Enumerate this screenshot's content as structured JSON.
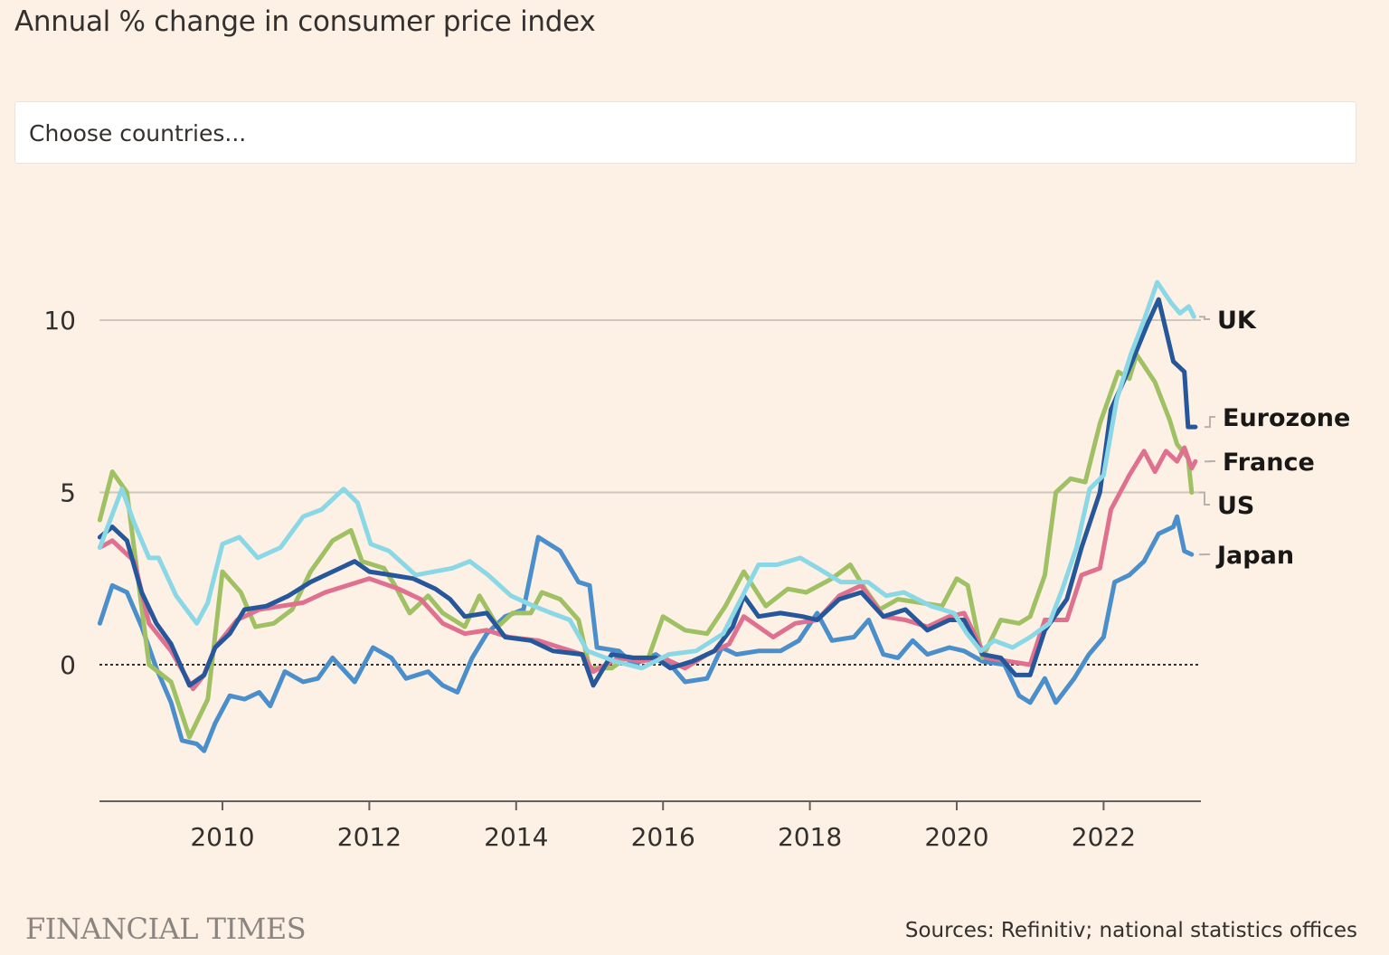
{
  "title": "Annual % change in consumer price index",
  "select": {
    "placeholder": "Choose countries..."
  },
  "footer": {
    "brand": "FINANCIAL TIMES",
    "source": "Sources: Refinitiv; national statistics offices"
  },
  "chart_data": {
    "type": "line",
    "title": "Annual % change in consumer price index",
    "xlabel": "",
    "ylabel": "",
    "xlim": [
      2008.33,
      2023.3
    ],
    "ylim": [
      -4,
      11.5
    ],
    "yticks": [
      0,
      5,
      10
    ],
    "xticks": [
      2010,
      2012,
      2014,
      2016,
      2018,
      2020,
      2022
    ],
    "grid": "horizontal",
    "legend": "direct labels right",
    "series": [
      {
        "name": "UK",
        "color": "#8ad8e6",
        "x": [
          2008.33,
          2008.63,
          2008.8,
          2009.0,
          2009.13,
          2009.37,
          2009.65,
          2009.8,
          2010.0,
          2010.23,
          2010.48,
          2010.79,
          2011.1,
          2011.35,
          2011.65,
          2011.84,
          2012.02,
          2012.27,
          2012.63,
          2013.13,
          2013.37,
          2013.62,
          2013.93,
          2014.24,
          2014.48,
          2014.73,
          2014.97,
          2015.34,
          2015.71,
          2016.08,
          2016.45,
          2016.82,
          2017.13,
          2017.3,
          2017.55,
          2017.87,
          2018.11,
          2018.42,
          2018.79,
          2019.04,
          2019.28,
          2019.65,
          2019.96,
          2020.14,
          2020.33,
          2020.51,
          2020.76,
          2021.0,
          2021.26,
          2021.44,
          2021.63,
          2021.81,
          2022.0,
          2022.18,
          2022.37,
          2022.55,
          2022.73,
          2022.92,
          2023.04,
          2023.16,
          2023.23
        ],
        "y": [
          3.4,
          5.1,
          4.1,
          3.1,
          3.1,
          2.0,
          1.2,
          1.8,
          3.5,
          3.7,
          3.1,
          3.4,
          4.3,
          4.5,
          5.1,
          4.7,
          3.5,
          3.3,
          2.6,
          2.8,
          3.0,
          2.6,
          2.0,
          1.7,
          1.5,
          1.3,
          0.4,
          0.1,
          -0.1,
          0.3,
          0.4,
          0.9,
          2.2,
          2.9,
          2.9,
          3.1,
          2.8,
          2.4,
          2.4,
          2.0,
          2.1,
          1.7,
          1.5,
          0.9,
          0.4,
          0.7,
          0.5,
          0.8,
          1.2,
          2.2,
          3.4,
          5.1,
          5.5,
          7.7,
          9.0,
          10.0,
          11.1,
          10.5,
          10.2,
          10.4,
          10.1
        ]
      },
      {
        "name": "Eurozone",
        "color": "#26579b",
        "x": [
          2008.33,
          2008.5,
          2008.7,
          2008.9,
          2009.1,
          2009.3,
          2009.55,
          2009.75,
          2009.9,
          2010.1,
          2010.3,
          2010.6,
          2010.9,
          2011.2,
          2011.5,
          2011.8,
          2012.0,
          2012.3,
          2012.6,
          2012.9,
          2013.1,
          2013.3,
          2013.6,
          2013.85,
          2014.2,
          2014.5,
          2014.9,
          2015.05,
          2015.3,
          2015.6,
          2015.9,
          2016.1,
          2016.4,
          2016.7,
          2016.95,
          2017.1,
          2017.3,
          2017.6,
          2017.9,
          2018.1,
          2018.4,
          2018.7,
          2019.0,
          2019.3,
          2019.6,
          2019.9,
          2020.1,
          2020.35,
          2020.6,
          2020.8,
          2021.0,
          2021.2,
          2021.5,
          2021.7,
          2021.95,
          2022.1,
          2022.35,
          2022.6,
          2022.75,
          2022.95,
          2023.1,
          2023.15,
          2023.25
        ],
        "y": [
          3.7,
          4.0,
          3.6,
          2.1,
          1.2,
          0.6,
          -0.6,
          -0.3,
          0.5,
          0.9,
          1.6,
          1.7,
          2.0,
          2.4,
          2.7,
          3.0,
          2.7,
          2.6,
          2.5,
          2.2,
          1.9,
          1.4,
          1.5,
          0.8,
          0.7,
          0.4,
          0.3,
          -0.6,
          0.3,
          0.2,
          0.2,
          -0.1,
          0.1,
          0.4,
          1.1,
          2.0,
          1.4,
          1.5,
          1.4,
          1.3,
          1.9,
          2.1,
          1.4,
          1.6,
          1.0,
          1.3,
          1.3,
          0.3,
          0.2,
          -0.3,
          -0.3,
          1.0,
          1.9,
          3.4,
          5.0,
          7.4,
          8.6,
          9.9,
          10.6,
          8.8,
          8.5,
          6.9,
          6.9
        ]
      },
      {
        "name": "France",
        "color": "#e0708f",
        "x": [
          2008.33,
          2008.5,
          2008.8,
          2009.0,
          2009.3,
          2009.6,
          2009.75,
          2009.9,
          2010.2,
          2010.5,
          2010.8,
          2011.1,
          2011.4,
          2011.7,
          2012.0,
          2012.4,
          2012.7,
          2013.0,
          2013.3,
          2013.6,
          2013.9,
          2014.3,
          2014.6,
          2014.9,
          2015.05,
          2015.4,
          2015.7,
          2016.0,
          2016.3,
          2016.6,
          2016.9,
          2017.1,
          2017.5,
          2017.8,
          2018.1,
          2018.4,
          2018.7,
          2019.0,
          2019.3,
          2019.6,
          2019.9,
          2020.1,
          2020.4,
          2020.7,
          2021.0,
          2021.2,
          2021.5,
          2021.7,
          2021.95,
          2022.1,
          2022.35,
          2022.55,
          2022.7,
          2022.85,
          2023.0,
          2023.1,
          2023.2,
          2023.25
        ],
        "y": [
          3.4,
          3.6,
          3.0,
          1.2,
          0.4,
          -0.7,
          -0.3,
          0.5,
          1.3,
          1.6,
          1.7,
          1.8,
          2.1,
          2.3,
          2.5,
          2.2,
          1.9,
          1.2,
          0.9,
          1.0,
          0.8,
          0.7,
          0.5,
          0.3,
          -0.2,
          0.2,
          0.1,
          0.2,
          -0.1,
          0.3,
          0.6,
          1.4,
          0.8,
          1.2,
          1.3,
          2.0,
          2.3,
          1.4,
          1.3,
          1.1,
          1.4,
          1.5,
          0.2,
          0.1,
          0.0,
          1.3,
          1.3,
          2.6,
          2.8,
          4.5,
          5.5,
          6.2,
          5.6,
          6.2,
          5.9,
          6.3,
          5.7,
          5.9
        ]
      },
      {
        "name": "US",
        "color": "#9fc063",
        "x": [
          2008.33,
          2008.5,
          2008.7,
          2008.85,
          2009.0,
          2009.3,
          2009.55,
          2009.8,
          2010.0,
          2010.25,
          2010.45,
          2010.7,
          2010.95,
          2011.2,
          2011.5,
          2011.75,
          2011.9,
          2012.2,
          2012.35,
          2012.55,
          2012.8,
          2013.0,
          2013.3,
          2013.5,
          2013.75,
          2013.95,
          2014.2,
          2014.35,
          2014.6,
          2014.85,
          2015.0,
          2015.3,
          2015.5,
          2015.8,
          2016.0,
          2016.3,
          2016.6,
          2016.85,
          2017.1,
          2017.4,
          2017.7,
          2017.95,
          2018.3,
          2018.55,
          2018.75,
          2018.95,
          2019.2,
          2019.5,
          2019.8,
          2020.0,
          2020.15,
          2020.35,
          2020.6,
          2020.85,
          2021.0,
          2021.2,
          2021.35,
          2021.55,
          2021.75,
          2021.95,
          2022.2,
          2022.35,
          2022.45,
          2022.7,
          2022.9,
          2023.0,
          2023.15,
          2023.2
        ],
        "y": [
          4.2,
          5.6,
          5.0,
          2.5,
          0.0,
          -0.5,
          -2.1,
          -1.0,
          2.7,
          2.1,
          1.1,
          1.2,
          1.6,
          2.7,
          3.6,
          3.9,
          3.0,
          2.8,
          2.3,
          1.5,
          2.0,
          1.5,
          1.1,
          2.0,
          1.1,
          1.5,
          1.5,
          2.1,
          1.9,
          1.3,
          -0.1,
          -0.1,
          0.2,
          0.2,
          1.4,
          1.0,
          0.9,
          1.7,
          2.7,
          1.7,
          2.2,
          2.1,
          2.5,
          2.9,
          2.2,
          1.6,
          1.9,
          1.8,
          1.7,
          2.5,
          2.3,
          0.2,
          1.3,
          1.2,
          1.4,
          2.6,
          5.0,
          5.4,
          5.3,
          7.0,
          8.5,
          8.3,
          9.0,
          8.2,
          7.1,
          6.4,
          6.0,
          5.0
        ]
      },
      {
        "name": "Japan",
        "color": "#4a8fcc",
        "x": [
          2008.33,
          2008.5,
          2008.7,
          2008.9,
          2009.1,
          2009.3,
          2009.45,
          2009.65,
          2009.75,
          2009.9,
          2010.1,
          2010.3,
          2010.5,
          2010.65,
          2010.85,
          2011.1,
          2011.3,
          2011.5,
          2011.8,
          2012.05,
          2012.3,
          2012.5,
          2012.8,
          2013.0,
          2013.2,
          2013.4,
          2013.6,
          2013.85,
          2014.1,
          2014.3,
          2014.6,
          2014.85,
          2015.0,
          2015.1,
          2015.4,
          2015.6,
          2015.9,
          2016.1,
          2016.3,
          2016.6,
          2016.8,
          2017.0,
          2017.3,
          2017.6,
          2017.85,
          2018.1,
          2018.3,
          2018.6,
          2018.8,
          2019.0,
          2019.2,
          2019.4,
          2019.6,
          2019.9,
          2020.1,
          2020.35,
          2020.65,
          2020.85,
          2021.0,
          2021.2,
          2021.35,
          2021.6,
          2021.8,
          2022.0,
          2022.15,
          2022.35,
          2022.55,
          2022.75,
          2022.95,
          2023.0,
          2023.1,
          2023.2
        ],
        "y": [
          1.2,
          2.3,
          2.1,
          1.1,
          -0.1,
          -1.1,
          -2.2,
          -2.3,
          -2.5,
          -1.7,
          -0.9,
          -1.0,
          -0.8,
          -1.2,
          -0.2,
          -0.5,
          -0.4,
          0.2,
          -0.5,
          0.5,
          0.2,
          -0.4,
          -0.2,
          -0.6,
          -0.8,
          0.2,
          0.9,
          1.4,
          1.6,
          3.7,
          3.3,
          2.4,
          2.3,
          0.5,
          0.4,
          0.0,
          0.3,
          0.0,
          -0.5,
          -0.4,
          0.5,
          0.3,
          0.4,
          0.4,
          0.7,
          1.5,
          0.7,
          0.8,
          1.3,
          0.3,
          0.2,
          0.7,
          0.3,
          0.5,
          0.4,
          0.1,
          0.0,
          -0.9,
          -1.1,
          -0.4,
          -1.1,
          -0.4,
          0.3,
          0.8,
          2.4,
          2.6,
          3.0,
          3.8,
          4.0,
          4.3,
          3.3,
          3.2
        ]
      }
    ]
  }
}
